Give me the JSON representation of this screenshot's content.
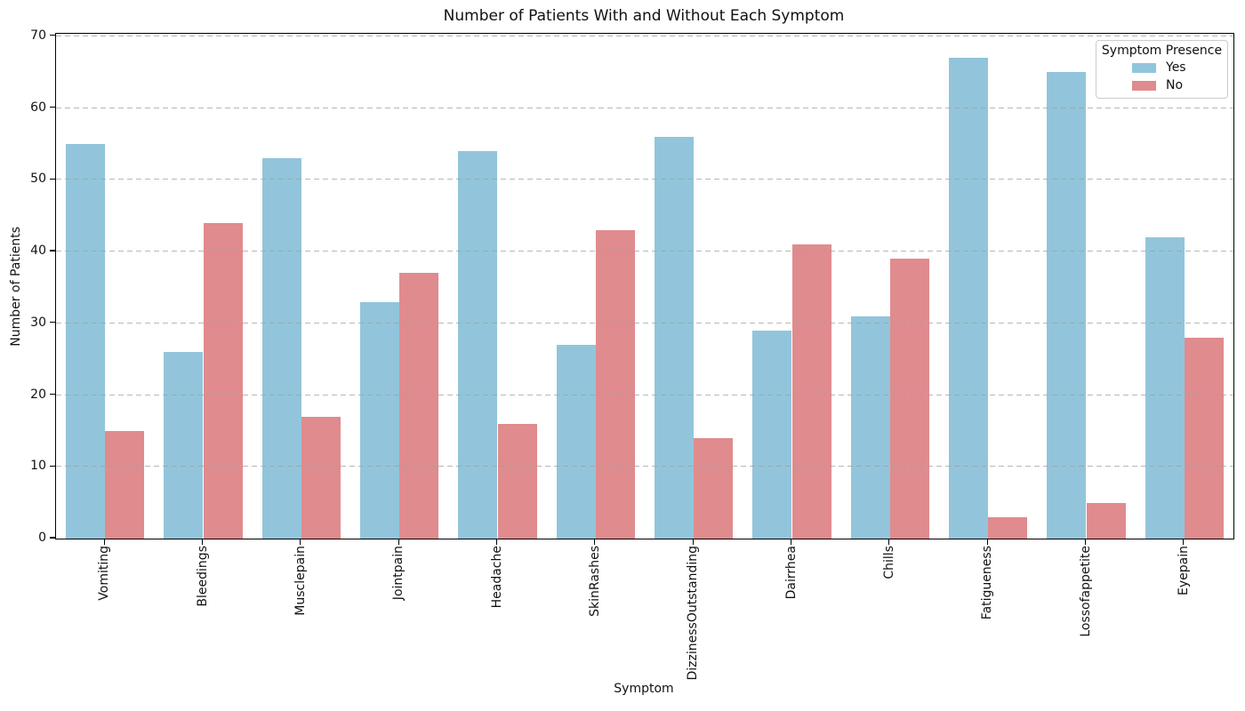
{
  "chart_data": {
    "type": "bar",
    "title": "Number of Patients With and Without Each Symptom",
    "xlabel": "Symptom",
    "ylabel": "Number of Patients",
    "categories": [
      "Vomiting",
      "Bleedings",
      "Musclepain",
      "Jointpain",
      "Headache",
      "SkinRashes",
      "DizzinessOutstanding",
      "Dairrhea",
      "Chills",
      "Fatigueness",
      "Lossofappetite",
      "Eyepain"
    ],
    "series": [
      {
        "name": "Yes",
        "color": "#92c5db",
        "values": [
          55,
          26,
          53,
          33,
          54,
          27,
          56,
          29,
          31,
          67,
          65,
          42
        ]
      },
      {
        "name": "No",
        "color": "#e08b8e",
        "values": [
          15,
          44,
          17,
          37,
          16,
          43,
          14,
          41,
          39,
          3,
          5,
          28
        ]
      }
    ],
    "ylim": [
      0,
      70.35
    ],
    "yticks": [
      0,
      10,
      20,
      30,
      40,
      50,
      60,
      70
    ],
    "grid": "horizontal dashed, drawn over bars",
    "legend": {
      "title": "Symptom Presence",
      "position": "upper right"
    }
  }
}
